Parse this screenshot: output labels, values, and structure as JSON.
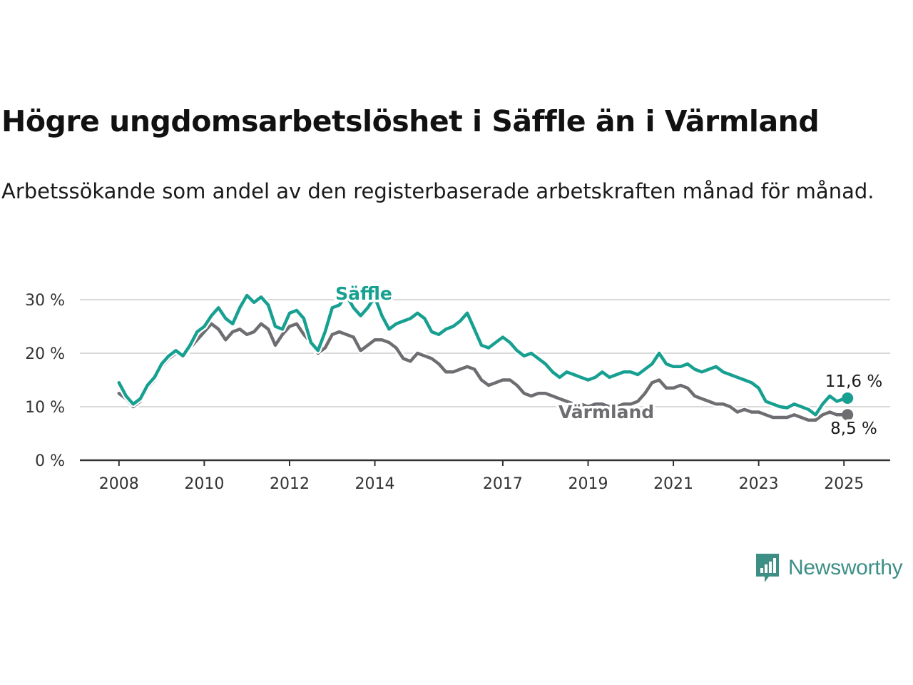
{
  "title": "Högre ungdomsarbetslöshet i Säffle än i Värmland",
  "subtitle": "Arbetssökande som andel av den registerbaserade arbetskraften månad för månad.",
  "brand": {
    "name": "Newsworthy",
    "icon": "newsworthy-bar-chart-icon"
  },
  "colors": {
    "saffle": "#17a091",
    "varmland": "#6e6e72",
    "grid": "#d9d9d9",
    "axis": "#333333"
  },
  "chart_data": {
    "type": "line",
    "title": "Högre ungdomsarbetslöshet i Säffle än i Värmland",
    "ylim": [
      0,
      30
    ],
    "ytick_labels": [
      {
        "value": 0,
        "label": "0 %"
      },
      {
        "value": 10,
        "label": "10 %"
      },
      {
        "value": 20,
        "label": "20 %"
      },
      {
        "value": 30,
        "label": "30 %"
      }
    ],
    "xtick_labels": [
      {
        "date": "2008-01",
        "label": "2008"
      },
      {
        "date": "2010-01",
        "label": "2010"
      },
      {
        "date": "2012-01",
        "label": "2012"
      },
      {
        "date": "2014-01",
        "label": "2014"
      },
      {
        "date": "2017-01",
        "label": "2017"
      },
      {
        "date": "2019-01",
        "label": "2019"
      },
      {
        "date": "2021-01",
        "label": "2021"
      },
      {
        "date": "2023-01",
        "label": "2023"
      },
      {
        "date": "2025-01",
        "label": "2025"
      }
    ],
    "xlim": [
      "2007-02",
      "2026-02"
    ],
    "grid": true,
    "legend": "inline labels on lines",
    "series": [
      {
        "name": "Säffle",
        "color": "#17a091",
        "end_label": "11,6 %",
        "points": [
          [
            "2008-01",
            14.5
          ],
          [
            "2008-03",
            12.0
          ],
          [
            "2008-05",
            10.5
          ],
          [
            "2008-07",
            11.5
          ],
          [
            "2008-09",
            14.0
          ],
          [
            "2008-11",
            15.5
          ],
          [
            "2009-01",
            18.0
          ],
          [
            "2009-03",
            19.5
          ],
          [
            "2009-05",
            20.5
          ],
          [
            "2009-07",
            19.5
          ],
          [
            "2009-09",
            21.5
          ],
          [
            "2009-11",
            24.0
          ],
          [
            "2010-01",
            25.0
          ],
          [
            "2010-03",
            27.0
          ],
          [
            "2010-05",
            28.5
          ],
          [
            "2010-07",
            26.5
          ],
          [
            "2010-09",
            25.5
          ],
          [
            "2010-11",
            28.5
          ],
          [
            "2011-01",
            30.8
          ],
          [
            "2011-03",
            29.5
          ],
          [
            "2011-05",
            30.5
          ],
          [
            "2011-07",
            29.0
          ],
          [
            "2011-09",
            25.0
          ],
          [
            "2011-11",
            24.5
          ],
          [
            "2012-01",
            27.5
          ],
          [
            "2012-03",
            28.0
          ],
          [
            "2012-05",
            26.5
          ],
          [
            "2012-07",
            22.0
          ],
          [
            "2012-09",
            20.5
          ],
          [
            "2012-11",
            24.0
          ],
          [
            "2013-01",
            28.5
          ],
          [
            "2013-03",
            29.0
          ],
          [
            "2013-05",
            30.8
          ],
          [
            "2013-07",
            28.5
          ],
          [
            "2013-09",
            27.0
          ],
          [
            "2013-11",
            28.5
          ],
          [
            "2014-01",
            30.5
          ],
          [
            "2014-03",
            27.0
          ],
          [
            "2014-05",
            24.5
          ],
          [
            "2014-07",
            25.5
          ],
          [
            "2014-09",
            26.0
          ],
          [
            "2014-11",
            26.5
          ],
          [
            "2015-01",
            27.5
          ],
          [
            "2015-03",
            26.5
          ],
          [
            "2015-05",
            24.0
          ],
          [
            "2015-07",
            23.5
          ],
          [
            "2015-09",
            24.5
          ],
          [
            "2015-11",
            25.0
          ],
          [
            "2016-01",
            26.0
          ],
          [
            "2016-03",
            27.5
          ],
          [
            "2016-05",
            24.5
          ],
          [
            "2016-07",
            21.5
          ],
          [
            "2016-09",
            21.0
          ],
          [
            "2016-11",
            22.0
          ],
          [
            "2017-01",
            23.0
          ],
          [
            "2017-03",
            22.0
          ],
          [
            "2017-05",
            20.5
          ],
          [
            "2017-07",
            19.5
          ],
          [
            "2017-09",
            20.0
          ],
          [
            "2017-11",
            19.0
          ],
          [
            "2018-01",
            18.0
          ],
          [
            "2018-03",
            16.5
          ],
          [
            "2018-05",
            15.5
          ],
          [
            "2018-07",
            16.5
          ],
          [
            "2018-09",
            16.0
          ],
          [
            "2018-11",
            15.5
          ],
          [
            "2019-01",
            15.0
          ],
          [
            "2019-03",
            15.5
          ],
          [
            "2019-05",
            16.5
          ],
          [
            "2019-07",
            15.5
          ],
          [
            "2019-09",
            16.0
          ],
          [
            "2019-11",
            16.5
          ],
          [
            "2020-01",
            16.5
          ],
          [
            "2020-03",
            16.0
          ],
          [
            "2020-05",
            17.0
          ],
          [
            "2020-07",
            18.0
          ],
          [
            "2020-09",
            20.0
          ],
          [
            "2020-11",
            18.0
          ],
          [
            "2021-01",
            17.5
          ],
          [
            "2021-03",
            17.5
          ],
          [
            "2021-05",
            18.0
          ],
          [
            "2021-07",
            17.0
          ],
          [
            "2021-09",
            16.5
          ],
          [
            "2021-11",
            17.0
          ],
          [
            "2022-01",
            17.5
          ],
          [
            "2022-03",
            16.5
          ],
          [
            "2022-05",
            16.0
          ],
          [
            "2022-07",
            15.5
          ],
          [
            "2022-09",
            15.0
          ],
          [
            "2022-11",
            14.5
          ],
          [
            "2023-01",
            13.5
          ],
          [
            "2023-03",
            11.0
          ],
          [
            "2023-05",
            10.5
          ],
          [
            "2023-07",
            10.0
          ],
          [
            "2023-09",
            9.8
          ],
          [
            "2023-11",
            10.5
          ],
          [
            "2024-01",
            10.0
          ],
          [
            "2024-03",
            9.5
          ],
          [
            "2024-05",
            8.5
          ],
          [
            "2024-07",
            10.5
          ],
          [
            "2024-09",
            12.0
          ],
          [
            "2024-11",
            11.0
          ],
          [
            "2025-01",
            11.5
          ],
          [
            "2025-02",
            11.6
          ]
        ]
      },
      {
        "name": "Värmland",
        "color": "#6e6e72",
        "end_label": "8,5 %",
        "points": [
          [
            "2008-01",
            12.5
          ],
          [
            "2008-03",
            11.5
          ],
          [
            "2008-05",
            10.0
          ],
          [
            "2008-07",
            11.0
          ],
          [
            "2008-09",
            13.5
          ],
          [
            "2008-11",
            15.0
          ],
          [
            "2009-01",
            17.5
          ],
          [
            "2009-03",
            19.0
          ],
          [
            "2009-05",
            20.0
          ],
          [
            "2009-07",
            19.5
          ],
          [
            "2009-09",
            21.0
          ],
          [
            "2009-11",
            22.5
          ],
          [
            "2010-01",
            24.0
          ],
          [
            "2010-03",
            25.5
          ],
          [
            "2010-05",
            24.5
          ],
          [
            "2010-07",
            22.5
          ],
          [
            "2010-09",
            24.0
          ],
          [
            "2010-11",
            24.5
          ],
          [
            "2011-01",
            23.5
          ],
          [
            "2011-03",
            24.0
          ],
          [
            "2011-05",
            25.5
          ],
          [
            "2011-07",
            24.5
          ],
          [
            "2011-09",
            21.5
          ],
          [
            "2011-11",
            23.5
          ],
          [
            "2012-01",
            25.0
          ],
          [
            "2012-03",
            25.5
          ],
          [
            "2012-05",
            23.5
          ],
          [
            "2012-07",
            22.0
          ],
          [
            "2012-09",
            20.0
          ],
          [
            "2012-11",
            21.0
          ],
          [
            "2013-01",
            23.5
          ],
          [
            "2013-03",
            24.0
          ],
          [
            "2013-05",
            23.5
          ],
          [
            "2013-07",
            23.0
          ],
          [
            "2013-09",
            20.5
          ],
          [
            "2013-11",
            21.5
          ],
          [
            "2014-01",
            22.5
          ],
          [
            "2014-03",
            22.5
          ],
          [
            "2014-05",
            22.0
          ],
          [
            "2014-07",
            21.0
          ],
          [
            "2014-09",
            19.0
          ],
          [
            "2014-11",
            18.5
          ],
          [
            "2015-01",
            20.0
          ],
          [
            "2015-03",
            19.5
          ],
          [
            "2015-05",
            19.0
          ],
          [
            "2015-07",
            18.0
          ],
          [
            "2015-09",
            16.5
          ],
          [
            "2015-11",
            16.5
          ],
          [
            "2016-01",
            17.0
          ],
          [
            "2016-03",
            17.5
          ],
          [
            "2016-05",
            17.0
          ],
          [
            "2016-07",
            15.0
          ],
          [
            "2016-09",
            14.0
          ],
          [
            "2016-11",
            14.5
          ],
          [
            "2017-01",
            15.0
          ],
          [
            "2017-03",
            15.0
          ],
          [
            "2017-05",
            14.0
          ],
          [
            "2017-07",
            12.5
          ],
          [
            "2017-09",
            12.0
          ],
          [
            "2017-11",
            12.5
          ],
          [
            "2018-01",
            12.5
          ],
          [
            "2018-03",
            12.0
          ],
          [
            "2018-05",
            11.5
          ],
          [
            "2018-07",
            11.0
          ],
          [
            "2018-09",
            10.5
          ],
          [
            "2018-11",
            10.5
          ],
          [
            "2019-01",
            10.0
          ],
          [
            "2019-03",
            10.5
          ],
          [
            "2019-05",
            10.5
          ],
          [
            "2019-07",
            10.0
          ],
          [
            "2019-09",
            10.0
          ],
          [
            "2019-11",
            10.5
          ],
          [
            "2020-01",
            10.5
          ],
          [
            "2020-03",
            11.0
          ],
          [
            "2020-05",
            12.5
          ],
          [
            "2020-07",
            14.5
          ],
          [
            "2020-09",
            15.0
          ],
          [
            "2020-11",
            13.5
          ],
          [
            "2021-01",
            13.5
          ],
          [
            "2021-03",
            14.0
          ],
          [
            "2021-05",
            13.5
          ],
          [
            "2021-07",
            12.0
          ],
          [
            "2021-09",
            11.5
          ],
          [
            "2021-11",
            11.0
          ],
          [
            "2022-01",
            10.5
          ],
          [
            "2022-03",
            10.5
          ],
          [
            "2022-05",
            10.0
          ],
          [
            "2022-07",
            9.0
          ],
          [
            "2022-09",
            9.5
          ],
          [
            "2022-11",
            9.0
          ],
          [
            "2023-01",
            9.0
          ],
          [
            "2023-03",
            8.5
          ],
          [
            "2023-05",
            8.0
          ],
          [
            "2023-07",
            8.0
          ],
          [
            "2023-09",
            8.0
          ],
          [
            "2023-11",
            8.5
          ],
          [
            "2024-01",
            8.0
          ],
          [
            "2024-03",
            7.5
          ],
          [
            "2024-05",
            7.5
          ],
          [
            "2024-07",
            8.5
          ],
          [
            "2024-09",
            9.0
          ],
          [
            "2024-11",
            8.5
          ],
          [
            "2025-01",
            8.5
          ],
          [
            "2025-02",
            8.5
          ]
        ]
      }
    ]
  }
}
